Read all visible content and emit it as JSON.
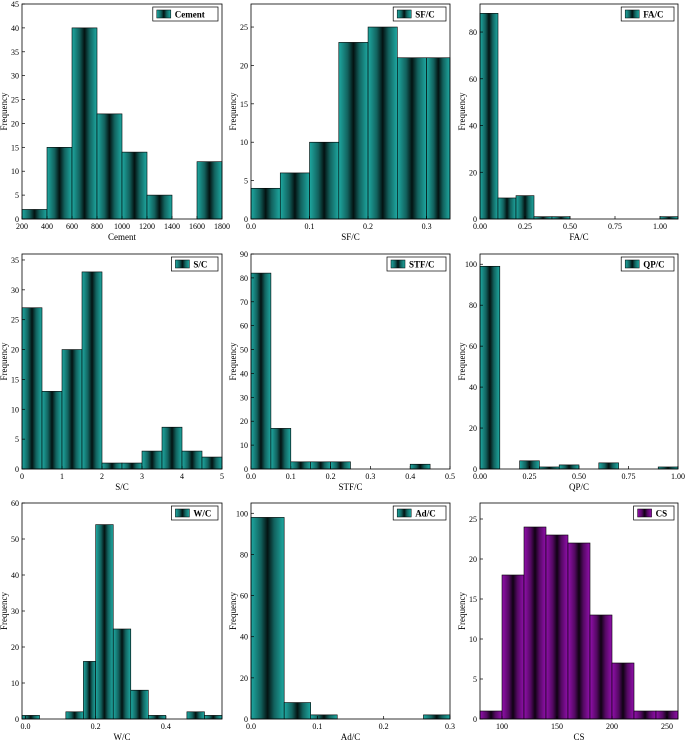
{
  "chart_data": [
    {
      "type": "histogram",
      "legend": "Cement",
      "legend_position": "top-right",
      "xlabel": "Cement",
      "ylabel": "Frequency",
      "color": "#20b2aa",
      "xlim": [
        200,
        1800
      ],
      "ylim": [
        0,
        45
      ],
      "xticks": [
        200,
        400,
        600,
        800,
        1000,
        1200,
        1400,
        1600,
        1800
      ],
      "xtick_labels": [
        "200",
        "400",
        "600",
        "800",
        "1000",
        "1200",
        "1400",
        "1600",
        "1800"
      ],
      "yticks": [
        0,
        5,
        10,
        15,
        20,
        25,
        30,
        35,
        40,
        45
      ],
      "ytick_labels": [
        "0",
        "5",
        "10",
        "15",
        "20",
        "25",
        "30",
        "35",
        "40",
        "45"
      ],
      "bins": [
        [
          200,
          400,
          2
        ],
        [
          400,
          600,
          15
        ],
        [
          600,
          800,
          40
        ],
        [
          800,
          1000,
          22
        ],
        [
          1000,
          1200,
          14
        ],
        [
          1200,
          1400,
          5
        ],
        [
          1600,
          1800,
          12
        ]
      ]
    },
    {
      "type": "histogram",
      "legend": "SF/C",
      "legend_position": "top-right",
      "xlabel": "SF/C",
      "ylabel": "Frequency",
      "color": "#20b2aa",
      "xlim": [
        0,
        0.34
      ],
      "ylim": [
        0,
        28
      ],
      "xticks": [
        0,
        0.1,
        0.2,
        0.3
      ],
      "xtick_labels": [
        "0.0",
        "0.1",
        "0.2",
        "0.3"
      ],
      "yticks": [
        0,
        5,
        10,
        15,
        20,
        25
      ],
      "ytick_labels": [
        "0",
        "5",
        "10",
        "15",
        "20",
        "25"
      ],
      "bins": [
        [
          0,
          0.05,
          4
        ],
        [
          0.05,
          0.1,
          6
        ],
        [
          0.1,
          0.15,
          10
        ],
        [
          0.15,
          0.2,
          23
        ],
        [
          0.2,
          0.25,
          25
        ],
        [
          0.25,
          0.3,
          21
        ],
        [
          0.3,
          0.34,
          21
        ]
      ]
    },
    {
      "type": "histogram",
      "legend": "FA/C",
      "legend_position": "top-right",
      "xlabel": "FA/C",
      "ylabel": "Frequency",
      "color": "#20b2aa",
      "xlim": [
        0,
        1.1
      ],
      "ylim": [
        0,
        92
      ],
      "xticks": [
        0,
        0.25,
        0.5,
        0.75,
        1.0
      ],
      "xtick_labels": [
        "0.00",
        "0.25",
        "0.50",
        "0.75",
        "1.00"
      ],
      "yticks": [
        0,
        20,
        40,
        60,
        80
      ],
      "ytick_labels": [
        "0",
        "20",
        "40",
        "60",
        "80"
      ],
      "bins": [
        [
          0,
          0.1,
          88
        ],
        [
          0.1,
          0.2,
          9
        ],
        [
          0.2,
          0.3,
          10
        ],
        [
          0.3,
          0.4,
          1
        ],
        [
          0.4,
          0.5,
          1
        ],
        [
          1.0,
          1.1,
          1
        ]
      ]
    },
    {
      "type": "histogram",
      "legend": "S/C",
      "legend_position": "top-right",
      "xlabel": "S/C",
      "ylabel": "Frequency",
      "color": "#20b2aa",
      "xlim": [
        0,
        5
      ],
      "ylim": [
        0,
        36
      ],
      "xticks": [
        0,
        1,
        2,
        3,
        4,
        5
      ],
      "xtick_labels": [
        "0",
        "1",
        "2",
        "3",
        "4",
        "5"
      ],
      "yticks": [
        0,
        5,
        10,
        15,
        20,
        25,
        30,
        35
      ],
      "ytick_labels": [
        "0",
        "5",
        "10",
        "15",
        "20",
        "25",
        "30",
        "35"
      ],
      "bins": [
        [
          0,
          0.5,
          27
        ],
        [
          0.5,
          1.0,
          13
        ],
        [
          1.0,
          1.5,
          20
        ],
        [
          1.5,
          2.0,
          33
        ],
        [
          2.0,
          2.5,
          1
        ],
        [
          2.5,
          3.0,
          1
        ],
        [
          3.0,
          3.5,
          3
        ],
        [
          3.5,
          4.0,
          7
        ],
        [
          4.0,
          4.5,
          3
        ],
        [
          4.5,
          5.0,
          2
        ]
      ]
    },
    {
      "type": "histogram",
      "legend": "STF/C",
      "legend_position": "top-right",
      "xlabel": "STF/C",
      "ylabel": "Frequency",
      "color": "#20b2aa",
      "xlim": [
        0,
        0.5
      ],
      "ylim": [
        0,
        90
      ],
      "xticks": [
        0,
        0.1,
        0.2,
        0.3,
        0.4,
        0.5
      ],
      "xtick_labels": [
        "0.0",
        "0.1",
        "0.2",
        "0.3",
        "0.4",
        "0.5"
      ],
      "yticks": [
        0,
        10,
        20,
        30,
        40,
        50,
        60,
        70,
        80,
        90
      ],
      "ytick_labels": [
        "0",
        "10",
        "20",
        "30",
        "40",
        "50",
        "60",
        "70",
        "80",
        "90"
      ],
      "bins": [
        [
          0,
          0.05,
          82
        ],
        [
          0.05,
          0.1,
          17
        ],
        [
          0.1,
          0.15,
          3
        ],
        [
          0.15,
          0.2,
          3
        ],
        [
          0.2,
          0.25,
          3
        ],
        [
          0.4,
          0.45,
          2
        ]
      ]
    },
    {
      "type": "histogram",
      "legend": "QP/C",
      "legend_position": "top-right",
      "xlabel": "QP/C",
      "ylabel": "Frequency",
      "color": "#20b2aa",
      "xlim": [
        0,
        1.0
      ],
      "ylim": [
        0,
        105
      ],
      "xticks": [
        0,
        0.25,
        0.5,
        0.75,
        1.0
      ],
      "xtick_labels": [
        "0.00",
        "0.25",
        "0.50",
        "0.75",
        "1.00"
      ],
      "yticks": [
        0,
        20,
        40,
        60,
        80,
        100
      ],
      "ytick_labels": [
        "0",
        "20",
        "40",
        "60",
        "80",
        "100"
      ],
      "bins": [
        [
          0,
          0.1,
          99
        ],
        [
          0.2,
          0.3,
          4
        ],
        [
          0.3,
          0.4,
          1
        ],
        [
          0.4,
          0.5,
          2
        ],
        [
          0.6,
          0.7,
          3
        ],
        [
          0.9,
          1.0,
          1
        ]
      ]
    },
    {
      "type": "histogram",
      "legend": "W/C",
      "legend_position": "top-right",
      "xlabel": "W/C",
      "ylabel": "Frequency",
      "color": "#20b2aa",
      "xlim": [
        -0.01,
        0.56
      ],
      "ylim": [
        0,
        60
      ],
      "xticks": [
        0,
        0.2,
        0.4
      ],
      "xtick_labels": [
        "0.0",
        "0.2",
        "0.4"
      ],
      "yticks": [
        0,
        10,
        20,
        30,
        40,
        50,
        60
      ],
      "ytick_labels": [
        "0",
        "10",
        "20",
        "30",
        "40",
        "50",
        "60"
      ],
      "bins": [
        [
          -0.01,
          0.04,
          1
        ],
        [
          0.115,
          0.165,
          2
        ],
        [
          0.165,
          0.2,
          16
        ],
        [
          0.2,
          0.25,
          54
        ],
        [
          0.25,
          0.3,
          25
        ],
        [
          0.3,
          0.35,
          8
        ],
        [
          0.35,
          0.4,
          1
        ],
        [
          0.46,
          0.51,
          2
        ],
        [
          0.51,
          0.56,
          1
        ]
      ]
    },
    {
      "type": "histogram",
      "legend": "Ad/C",
      "legend_position": "top-right",
      "xlabel": "Ad/C",
      "ylabel": "Frequency",
      "color": "#20b2aa",
      "xlim": [
        0,
        0.3
      ],
      "ylim": [
        0,
        105
      ],
      "xticks": [
        0,
        0.1,
        0.2,
        0.3
      ],
      "xtick_labels": [
        "0.0",
        "0.1",
        "0.2",
        "0.3"
      ],
      "yticks": [
        0,
        20,
        40,
        60,
        80,
        100
      ],
      "ytick_labels": [
        "0",
        "20",
        "40",
        "60",
        "80",
        "100"
      ],
      "bins": [
        [
          0,
          0.05,
          98
        ],
        [
          0.05,
          0.09,
          8
        ],
        [
          0.09,
          0.13,
          2
        ],
        [
          0.26,
          0.3,
          2
        ]
      ]
    },
    {
      "type": "histogram",
      "legend": "CS",
      "legend_position": "top-right",
      "xlabel": "CS",
      "ylabel": "Frequency",
      "color": "#9a10b5",
      "xlim": [
        80,
        260
      ],
      "ylim": [
        0,
        27
      ],
      "xticks": [
        100,
        150,
        200,
        250
      ],
      "xtick_labels": [
        "100",
        "150",
        "200",
        "250"
      ],
      "yticks": [
        0,
        5,
        10,
        15,
        20,
        25
      ],
      "ytick_labels": [
        "0",
        "5",
        "10",
        "15",
        "20",
        "25"
      ],
      "bins": [
        [
          80,
          100,
          1
        ],
        [
          100,
          120,
          18
        ],
        [
          120,
          140,
          24
        ],
        [
          140,
          160,
          23
        ],
        [
          160,
          180,
          22
        ],
        [
          180,
          200,
          13
        ],
        [
          200,
          220,
          7
        ],
        [
          220,
          240,
          1
        ],
        [
          240,
          260,
          1
        ]
      ]
    }
  ]
}
